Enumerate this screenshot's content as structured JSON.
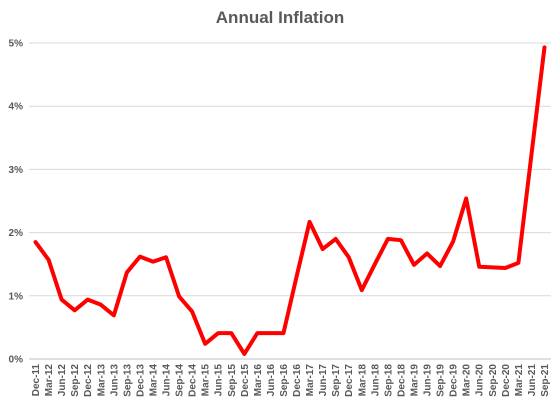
{
  "chart_data": {
    "type": "line",
    "title": "Annual Inflation",
    "xlabel": "",
    "ylabel": "",
    "ylim": [
      0,
      5
    ],
    "y_ticks": [
      0,
      1,
      2,
      3,
      4,
      5
    ],
    "y_tick_labels": [
      "0%",
      "1%",
      "2%",
      "3%",
      "4%",
      "5%"
    ],
    "grid": "horizontal",
    "legend": "none",
    "line_color": "#ff0000",
    "x": [
      "Dec-11",
      "Mar-12",
      "Jun-12",
      "Sep-12",
      "Dec-12",
      "Mar-13",
      "Jun-13",
      "Sep-13",
      "Dec-13",
      "Mar-14",
      "Jun-14",
      "Sep-14",
      "Dec-14",
      "Mar-15",
      "Jun-15",
      "Sep-15",
      "Dec-15",
      "Mar-16",
      "Jun-16",
      "Sep-16",
      "Dec-16",
      "Mar-17",
      "Jun-17",
      "Sep-17",
      "Dec-17",
      "Mar-18",
      "Jun-18",
      "Sep-18",
      "Dec-18",
      "Mar-19",
      "Jun-19",
      "Sep-19",
      "Dec-19",
      "Mar-20",
      "Jun-20",
      "Sep-20",
      "Dec-20",
      "Mar-21",
      "Jun-21",
      "Sep-21"
    ],
    "series": [
      {
        "values": [
          1.85,
          1.57,
          0.94,
          0.77,
          0.94,
          0.86,
          0.69,
          1.37,
          1.62,
          1.54,
          1.61,
          0.99,
          0.75,
          0.24,
          0.41,
          0.41,
          0.08,
          0.41,
          0.41,
          0.41,
          1.3,
          2.17,
          1.74,
          1.9,
          1.61,
          1.09,
          1.5,
          1.9,
          1.88,
          1.49,
          1.67,
          1.47,
          1.86,
          2.54,
          1.46,
          1.45,
          1.44,
          1.52,
          3.23,
          4.93
        ]
      }
    ]
  }
}
